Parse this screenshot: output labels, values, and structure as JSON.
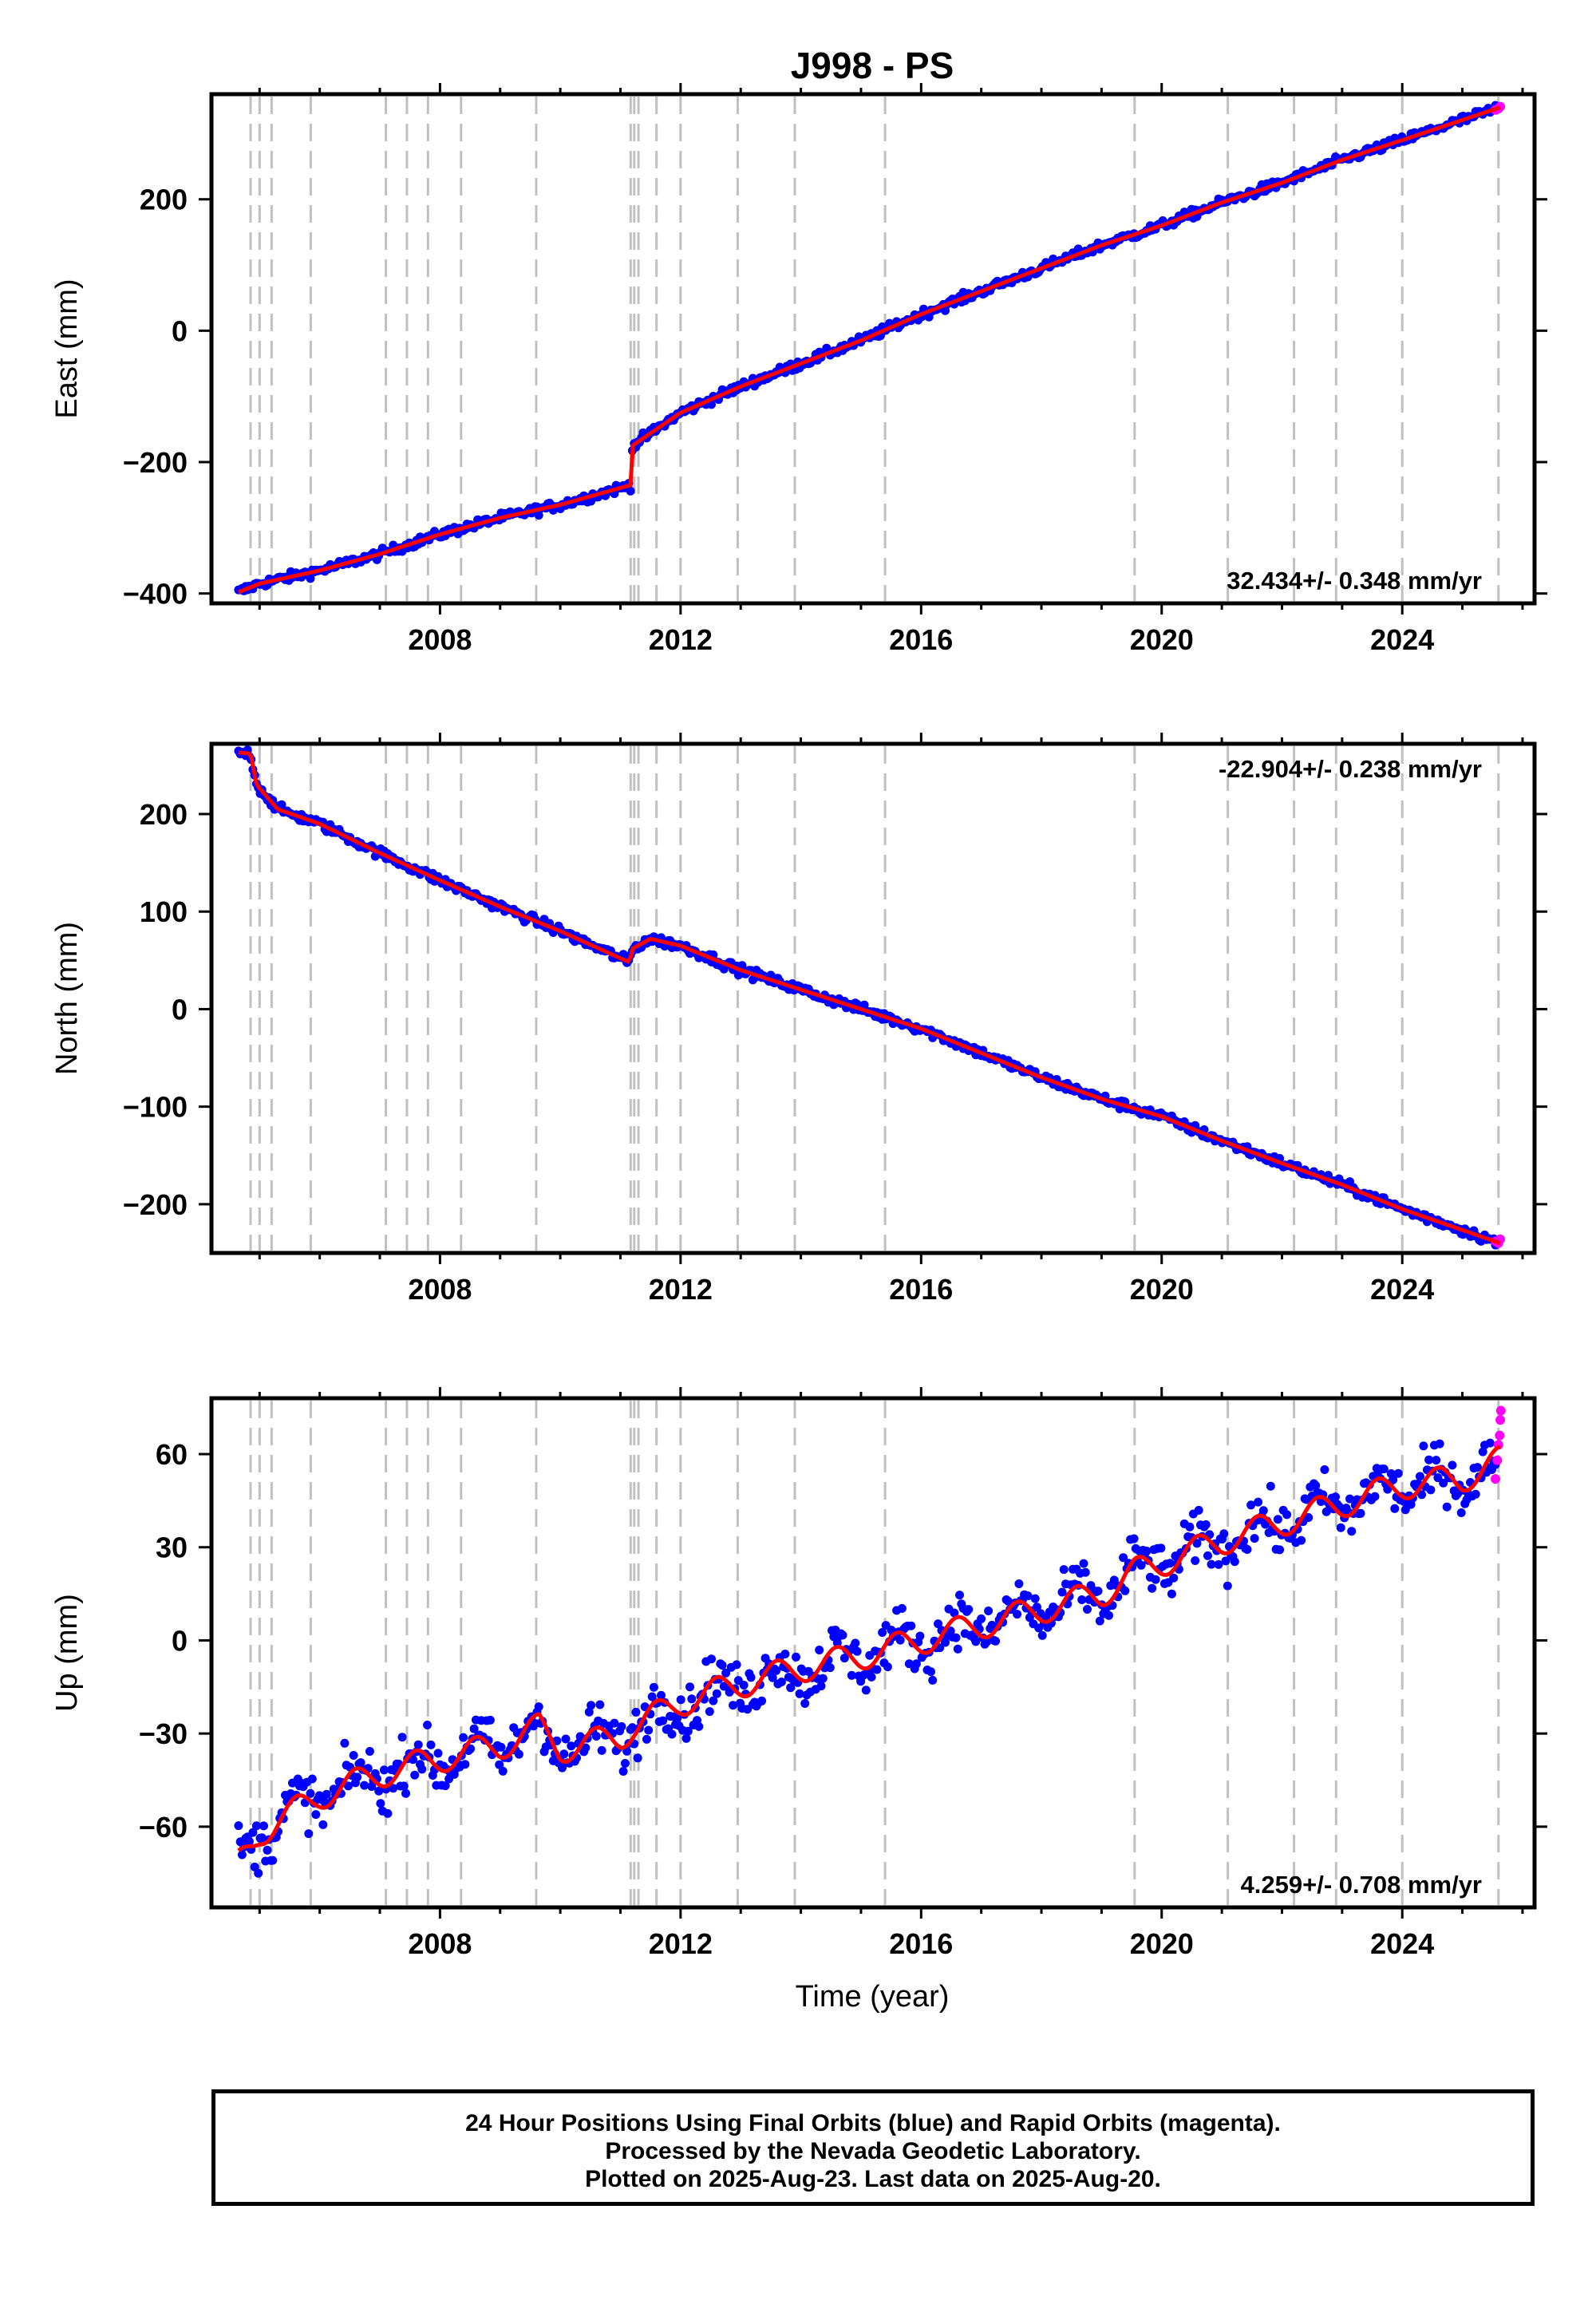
{
  "title": "J998 - PS",
  "xlabel": "Time (year)",
  "colors": {
    "final": "#0000ff",
    "rapid": "#ff00ff",
    "model": "#ff0000",
    "vlines": "#c0c0c0",
    "axis": "#000000"
  },
  "caption": {
    "line1": "24 Hour Positions Using Final Orbits (blue) and Rapid Orbits (magenta).",
    "line2": "Processed by the Nevada Geodetic Laboratory.",
    "line3": "Plotted on 2025-Aug-23. Last data on 2025-Aug-20."
  },
  "chart_data": [
    {
      "type": "scatter",
      "component": "East",
      "ylabel": "East (mm)",
      "rate_label": "32.434+/- 0.348 mm/yr",
      "rate_position": "bottom-right",
      "xlim": [
        2004.2,
        2026.2
      ],
      "ylim": [
        -415,
        360
      ],
      "xticks": [
        2008,
        2012,
        2016,
        2020,
        2024
      ],
      "yticks": [
        -400,
        -200,
        0,
        200
      ],
      "ytick_labels": [
        "−400",
        "−200",
        "0",
        "200"
      ],
      "equipment_changes": [
        2004.85,
        2005.0,
        2005.2,
        2005.85,
        2007.1,
        2007.45,
        2007.8,
        2008.35,
        2009.6,
        2011.17,
        2011.23,
        2011.3,
        2011.6,
        2012.0,
        2012.95,
        2013.9,
        2015.4,
        2019.55,
        2021.1,
        2022.2,
        2022.9,
        2024.0,
        2025.6
      ],
      "trend": {
        "x": [
          2004.65,
          2005.0,
          2006.0,
          2007.0,
          2008.0,
          2009.0,
          2010.0,
          2011.17,
          2011.2,
          2012.0,
          2013.0,
          2014.0,
          2015.0,
          2016.0,
          2017.0,
          2018.0,
          2019.0,
          2020.0,
          2021.0,
          2022.0,
          2023.0,
          2024.0,
          2025.63
        ],
        "y": [
          -398,
          -385,
          -365,
          -340,
          -310,
          -285,
          -265,
          -235,
          -175,
          -125,
          -85,
          -50,
          -15,
          25,
          60,
          95,
          130,
          160,
          195,
          225,
          260,
          290,
          340
        ]
      },
      "scatter_spread": 5,
      "rapid": {
        "x": [
          2025.55,
          2025.6,
          2025.63
        ],
        "y": [
          336,
          338,
          341
        ]
      }
    },
    {
      "type": "scatter",
      "component": "North",
      "ylabel": "North (mm)",
      "rate_label": "-22.904+/- 0.238 mm/yr",
      "rate_position": "top-right",
      "xlim": [
        2004.2,
        2026.2
      ],
      "ylim": [
        -250,
        272
      ],
      "xticks": [
        2008,
        2012,
        2016,
        2020,
        2024
      ],
      "yticks": [
        -200,
        -100,
        0,
        100,
        200
      ],
      "ytick_labels": [
        "−200",
        "−100",
        "0",
        "100",
        "200"
      ],
      "equipment_changes": [
        2004.85,
        2005.0,
        2005.2,
        2005.85,
        2007.1,
        2007.45,
        2007.8,
        2008.35,
        2009.6,
        2011.17,
        2011.23,
        2011.3,
        2011.6,
        2012.0,
        2012.95,
        2013.9,
        2015.4,
        2019.55,
        2021.1,
        2022.2,
        2022.9,
        2024.0,
        2025.6
      ],
      "trend": {
        "x": [
          2004.65,
          2004.85,
          2004.95,
          2005.3,
          2006.0,
          2007.0,
          2008.0,
          2009.0,
          2010.0,
          2011.15,
          2011.2,
          2011.5,
          2012.0,
          2013.0,
          2014.0,
          2015.0,
          2016.0,
          2017.0,
          2018.0,
          2019.0,
          2020.0,
          2021.0,
          2022.0,
          2023.0,
          2024.0,
          2025.63
        ],
        "y": [
          263,
          262,
          230,
          205,
          190,
          160,
          132,
          105,
          80,
          48,
          62,
          72,
          65,
          40,
          20,
          0,
          -20,
          -45,
          -70,
          -92,
          -110,
          -135,
          -158,
          -180,
          -205,
          -240
        ]
      },
      "scatter_spread": 3.5,
      "rapid": {
        "x": [
          2025.55,
          2025.6,
          2025.63
        ],
        "y": [
          -238,
          -240,
          -236
        ]
      }
    },
    {
      "type": "scatter",
      "component": "Up",
      "ylabel": "Up (mm)",
      "rate_label": "4.259+/- 0.708 mm/yr",
      "rate_position": "bottom-right",
      "xlim": [
        2004.2,
        2026.2
      ],
      "ylim": [
        -86,
        78
      ],
      "xticks": [
        2008,
        2012,
        2016,
        2020,
        2024
      ],
      "yticks": [
        -60,
        -30,
        0,
        30,
        60
      ],
      "ytick_labels": [
        "−60",
        "−30",
        "0",
        "30",
        "60"
      ],
      "equipment_changes": [
        2004.85,
        2005.0,
        2005.2,
        2005.85,
        2007.1,
        2007.45,
        2007.8,
        2008.35,
        2009.6,
        2011.17,
        2011.23,
        2011.3,
        2011.6,
        2012.0,
        2012.95,
        2013.9,
        2015.4,
        2019.55,
        2021.1,
        2022.2,
        2022.9,
        2024.0,
        2025.6
      ],
      "trend": {
        "x": [
          2004.65,
          2005.0,
          2006.0,
          2007.0,
          2008.0,
          2009.0,
          2009.65,
          2010.0,
          2011.0,
          2011.2,
          2012.0,
          2013.0,
          2014.0,
          2015.0,
          2016.0,
          2017.0,
          2018.0,
          2019.0,
          2019.55,
          2020.0,
          2021.0,
          2022.0,
          2023.0,
          2024.0,
          2025.0,
          2025.63
        ],
        "y": [
          -72,
          -62,
          -50,
          -43,
          -38,
          -34,
          -28,
          -35,
          -31,
          -28,
          -20,
          -14,
          -9,
          -5,
          0,
          5,
          10,
          15,
          22,
          25,
          32,
          38,
          44,
          50,
          52,
          58
        ]
      },
      "seasonal_amplitude": 4.5,
      "scatter_spread": 6,
      "rapid": {
        "x": [
          2025.55,
          2025.58,
          2025.6,
          2025.62,
          2025.63,
          2025.64
        ],
        "y": [
          52,
          58,
          63,
          66,
          71,
          74
        ]
      }
    }
  ]
}
